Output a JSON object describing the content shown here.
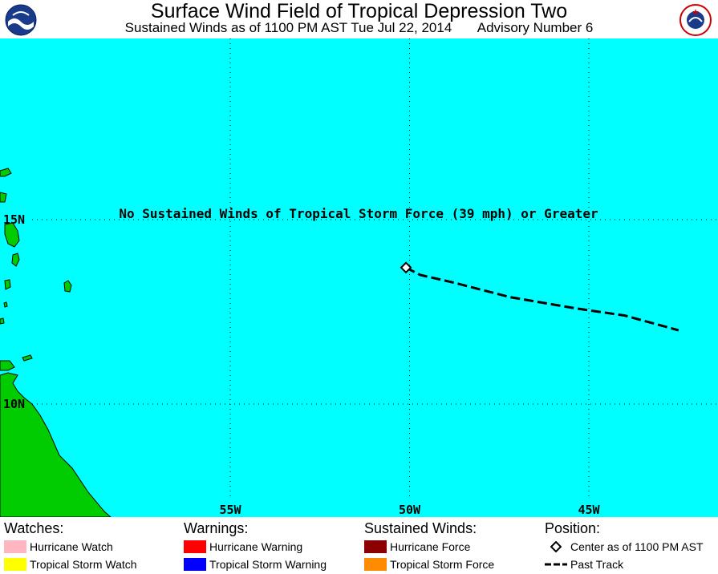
{
  "header": {
    "title": "Surface Wind Field of Tropical Depression Two",
    "subtitle_left": "Sustained Winds as of 1100 PM AST Tue Jul 22, 2014",
    "subtitle_right": "Advisory Number 6",
    "logo_left": "NOAA",
    "logo_right": "NATIONAL WEATHER SERVICE"
  },
  "map": {
    "ocean_color": "#00ffff",
    "land_color": "#00cc00",
    "message": "No Sustained Winds of Tropical Storm Force (39 mph) or Greater",
    "lat_labels": [
      "15N",
      "10N"
    ],
    "lon_labels": [
      "55W",
      "50W",
      "45W"
    ],
    "storm_center": {
      "lon": -50.1,
      "lat": 13.7
    },
    "past_track": [
      {
        "lon": -50.1,
        "lat": 13.7
      },
      {
        "lon": -49.7,
        "lat": 13.5
      },
      {
        "lon": -48.8,
        "lat": 13.3
      },
      {
        "lon": -47.2,
        "lat": 12.9
      },
      {
        "lon": -45.4,
        "lat": 12.6
      },
      {
        "lon": -44.0,
        "lat": 12.4
      },
      {
        "lon": -42.5,
        "lat": 12.0
      }
    ]
  },
  "legend": {
    "watches": {
      "heading": "Watches:",
      "items": [
        {
          "label": "Hurricane Watch",
          "color": "#ffb6c1"
        },
        {
          "label": "Tropical Storm Watch",
          "color": "#ffff00"
        }
      ]
    },
    "warnings": {
      "heading": "Warnings:",
      "items": [
        {
          "label": "Hurricane Warning",
          "color": "#ff0000"
        },
        {
          "label": "Tropical Storm Warning",
          "color": "#0000ff"
        }
      ]
    },
    "winds": {
      "heading": "Sustained Winds:",
      "items": [
        {
          "label": "Hurricane Force",
          "color": "#8b0000"
        },
        {
          "label": "Tropical Storm Force",
          "color": "#ff8c00"
        }
      ]
    },
    "position": {
      "heading": "Position:",
      "items": [
        {
          "label": "Center as of 1100 PM AST",
          "icon": "diamond-icon"
        },
        {
          "label": "Past Track",
          "icon": "dashed-line-icon"
        }
      ]
    }
  }
}
